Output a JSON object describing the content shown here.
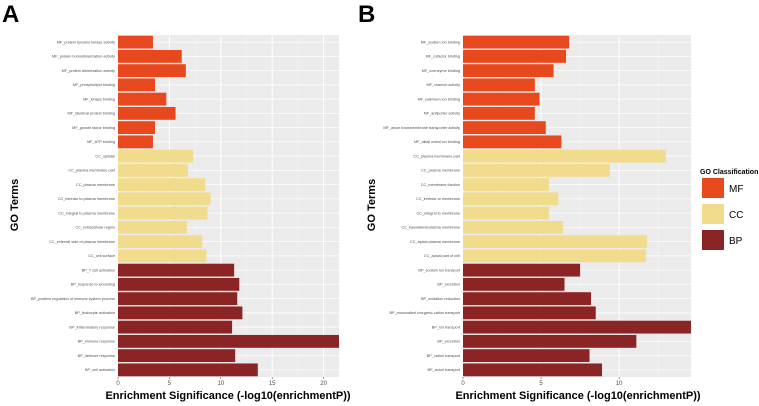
{
  "colors": {
    "MF": "#e8481d",
    "CC": "#f0dc8c",
    "BP": "#8b2424",
    "panel_bg": "#ebebeb",
    "grid_major": "#ffffff",
    "grid_minor": "#f4f4f4",
    "text": "#000000",
    "tick_text": "#4d4d4d"
  },
  "legend": {
    "title": "GO Classification",
    "items": [
      {
        "key": "MF",
        "label": "MF"
      },
      {
        "key": "CC",
        "label": "CC"
      },
      {
        "key": "BP",
        "label": "BP"
      }
    ]
  },
  "chart_data": [
    {
      "panel_label": "A",
      "type": "bar",
      "orientation": "horizontal",
      "xlabel": "Enrichment Significance (-log10(enrichmentP))",
      "ylabel": "GO Terms",
      "xlim": [
        0,
        21.5
      ],
      "xticks": [
        0,
        5,
        10,
        15,
        20
      ],
      "bars": [
        {
          "term": "MF_protein tyrosine kinase activity",
          "category": "MF",
          "value": 3.4
        },
        {
          "term": "MF_protein homodimerization activity",
          "category": "MF",
          "value": 6.2
        },
        {
          "term": "MF_protein dimerization activity",
          "category": "MF",
          "value": 6.6
        },
        {
          "term": "MF_phospholipid binding",
          "category": "MF",
          "value": 3.6
        },
        {
          "term": "MF_kinase binding",
          "category": "MF",
          "value": 4.7
        },
        {
          "term": "MF_identical protein binding",
          "category": "MF",
          "value": 5.6
        },
        {
          "term": "MF_growth factor binding",
          "category": "MF",
          "value": 3.6
        },
        {
          "term": "MF_ATP binding",
          "category": "MF",
          "value": 3.4
        },
        {
          "term": "CC_spindle",
          "category": "CC",
          "value": 7.3
        },
        {
          "term": "CC_plasma membrane part",
          "category": "CC",
          "value": 6.8
        },
        {
          "term": "CC_plasma membrane",
          "category": "CC",
          "value": 8.5
        },
        {
          "term": "CC_intrinsic to plasma membrane",
          "category": "CC",
          "value": 9.0
        },
        {
          "term": "CC_integral to plasma membrane",
          "category": "CC",
          "value": 8.7
        },
        {
          "term": "CC_extracellular region",
          "category": "CC",
          "value": 6.7
        },
        {
          "term": "CC_external side of plasma membrane",
          "category": "CC",
          "value": 8.2
        },
        {
          "term": "CC_cell surface",
          "category": "CC",
          "value": 8.6
        },
        {
          "term": "BP_T cell activation",
          "category": "BP",
          "value": 11.3
        },
        {
          "term": "BP_response to wounding",
          "category": "BP",
          "value": 11.8
        },
        {
          "term": "BP_positive regulation of immune system process",
          "category": "BP",
          "value": 11.6
        },
        {
          "term": "BP_leukocyte activation",
          "category": "BP",
          "value": 12.1
        },
        {
          "term": "BP_inflammatory response",
          "category": "BP",
          "value": 11.1
        },
        {
          "term": "BP_immune response",
          "category": "BP",
          "value": 21.5
        },
        {
          "term": "BP_defense response",
          "category": "BP",
          "value": 11.4
        },
        {
          "term": "BP_cell activation",
          "category": "BP",
          "value": 13.6
        }
      ]
    },
    {
      "panel_label": "B",
      "type": "bar",
      "orientation": "horizontal",
      "xlabel": "Enrichment Significance (-log10(enrichmentP))",
      "ylabel": "GO Terms",
      "xlim": [
        0,
        14.6
      ],
      "xticks": [
        0,
        5,
        10
      ],
      "bars": [
        {
          "term": "MF_sodium ion binding",
          "category": "MF",
          "value": 6.8
        },
        {
          "term": "MF_cofactor binding",
          "category": "MF",
          "value": 6.6
        },
        {
          "term": "MF_coenzyme binding",
          "category": "MF",
          "value": 5.8
        },
        {
          "term": "MF_channel activity",
          "category": "MF",
          "value": 4.6
        },
        {
          "term": "MF_cadmium ion binding",
          "category": "MF",
          "value": 4.9
        },
        {
          "term": "MF_antiporter activity",
          "category": "MF",
          "value": 4.6
        },
        {
          "term": "MF_anion transmembrane transporter activity",
          "category": "MF",
          "value": 5.3
        },
        {
          "term": "MF_alkali metal ion binding",
          "category": "MF",
          "value": 6.3
        },
        {
          "term": "CC_plasma membrane part",
          "category": "CC",
          "value": 13.0
        },
        {
          "term": "CC_plasma membrane",
          "category": "CC",
          "value": 9.4
        },
        {
          "term": "CC_membrane fraction",
          "category": "CC",
          "value": 5.5
        },
        {
          "term": "CC_intrinsic to membrane",
          "category": "CC",
          "value": 6.1
        },
        {
          "term": "CC_integral to membrane",
          "category": "CC",
          "value": 5.5
        },
        {
          "term": "CC_basolateral plasma membrane",
          "category": "CC",
          "value": 6.4
        },
        {
          "term": "CC_apical plasma membrane",
          "category": "CC",
          "value": 11.8
        },
        {
          "term": "CC_apical part of cell",
          "category": "CC",
          "value": 11.7
        },
        {
          "term": "BP_sodium ion transport",
          "category": "BP",
          "value": 7.5
        },
        {
          "term": "BP_excretion",
          "category": "BP",
          "value": 6.5
        },
        {
          "term": "BP_oxidation reduction",
          "category": "BP",
          "value": 8.2
        },
        {
          "term": "BP_monovalent inorganic cation transport",
          "category": "BP",
          "value": 8.5
        },
        {
          "term": "BP_ion transport",
          "category": "BP",
          "value": 14.6
        },
        {
          "term": "BP_excretion",
          "category": "BP",
          "value": 11.1
        },
        {
          "term": "BP_cation transport",
          "category": "BP",
          "value": 8.1
        },
        {
          "term": "BP_anion transport",
          "category": "BP",
          "value": 8.9
        }
      ]
    }
  ]
}
